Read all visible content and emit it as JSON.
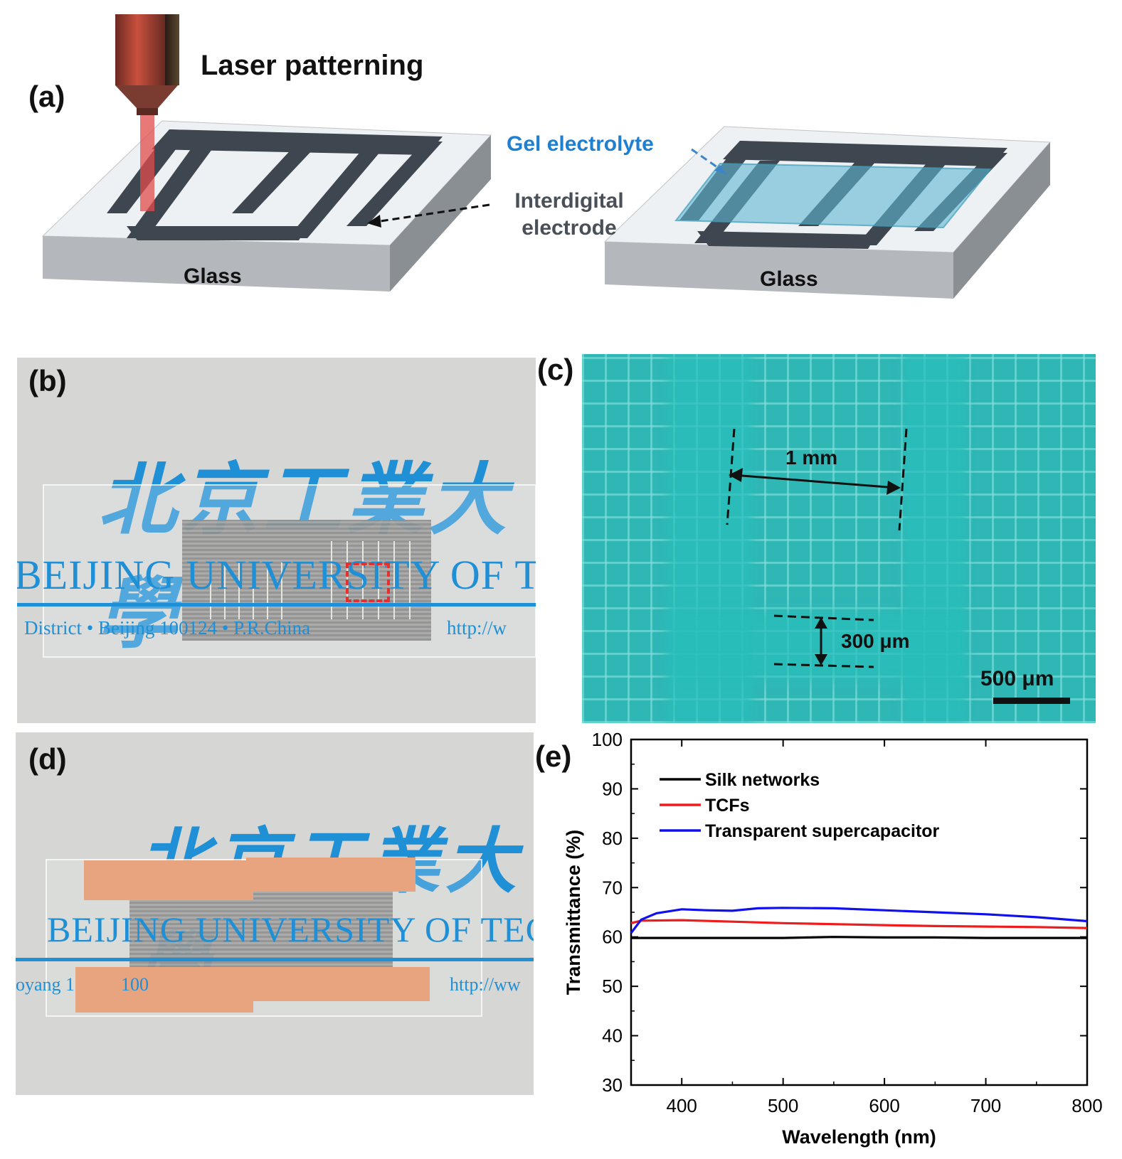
{
  "panel_a": {
    "label": "(a)",
    "title": "Laser patterning",
    "gel": "Gel electrolyte",
    "electrode_line1": "Interdigital",
    "electrode_line2": "electrode",
    "glass_left": "Glass",
    "glass_right": "Glass"
  },
  "panel_b": {
    "label": "(b)",
    "chinese": "北京工業大學",
    "univ": "BEIJING UNIVERSITY OF TECHNOL",
    "address": "District • Beijing 100124 • P.R.China",
    "url": "http://w"
  },
  "panel_c": {
    "label": "(c)",
    "dim1": "1 mm",
    "dim2": "300 μm",
    "scale": "500 μm"
  },
  "panel_d": {
    "label": "(d)",
    "chinese": "北京工業大學",
    "univ": "BEIJING UNIVERSITY OF TECHNOLO",
    "address": "oyang 1          100",
    "url": "http://ww"
  },
  "panel_e": {
    "label": "(e)"
  },
  "colors": {
    "glass_top": "#eef1f3",
    "electrode": "#3e4650",
    "gel": "#5fb8d4",
    "laser": "#d93b3b",
    "photo_bg": "#d6d7d4",
    "print_blue": "#1f8fd6",
    "micro_bg": "#2fb7b6",
    "copper": "#e7a47f"
  },
  "chart_data": {
    "type": "line",
    "xlabel": "Wavelength (nm)",
    "ylabel": "Transmittance (%)",
    "xlim": [
      350,
      800
    ],
    "ylim": [
      30,
      100
    ],
    "xticks": [
      "400",
      "500",
      "600",
      "700",
      "800"
    ],
    "yticks": [
      "30",
      "40",
      "50",
      "60",
      "70",
      "80",
      "90",
      "100"
    ],
    "legend_position": "top-left",
    "series": [
      {
        "name": "Silk networks",
        "color": "#000000",
        "x": [
          350,
          400,
          450,
          500,
          550,
          600,
          650,
          700,
          750,
          800
        ],
        "y": [
          59.8,
          59.8,
          59.8,
          59.8,
          60.0,
          59.9,
          59.9,
          59.8,
          59.8,
          59.8
        ]
      },
      {
        "name": "TCFs",
        "color": "#ee1c1c",
        "x": [
          350,
          360,
          400,
          450,
          500,
          550,
          600,
          650,
          700,
          750,
          800
        ],
        "y": [
          62.8,
          63.3,
          63.4,
          63.1,
          62.8,
          62.6,
          62.4,
          62.2,
          62.1,
          62.0,
          61.8
        ]
      },
      {
        "name": "Transparent supercapacitor",
        "color": "#1010ee",
        "x": [
          350,
          360,
          375,
          400,
          425,
          450,
          475,
          500,
          550,
          600,
          650,
          700,
          750,
          800
        ],
        "y": [
          60.8,
          63.5,
          64.8,
          65.6,
          65.4,
          65.3,
          65.8,
          65.9,
          65.8,
          65.4,
          65.0,
          64.6,
          64.0,
          63.2
        ]
      }
    ]
  }
}
